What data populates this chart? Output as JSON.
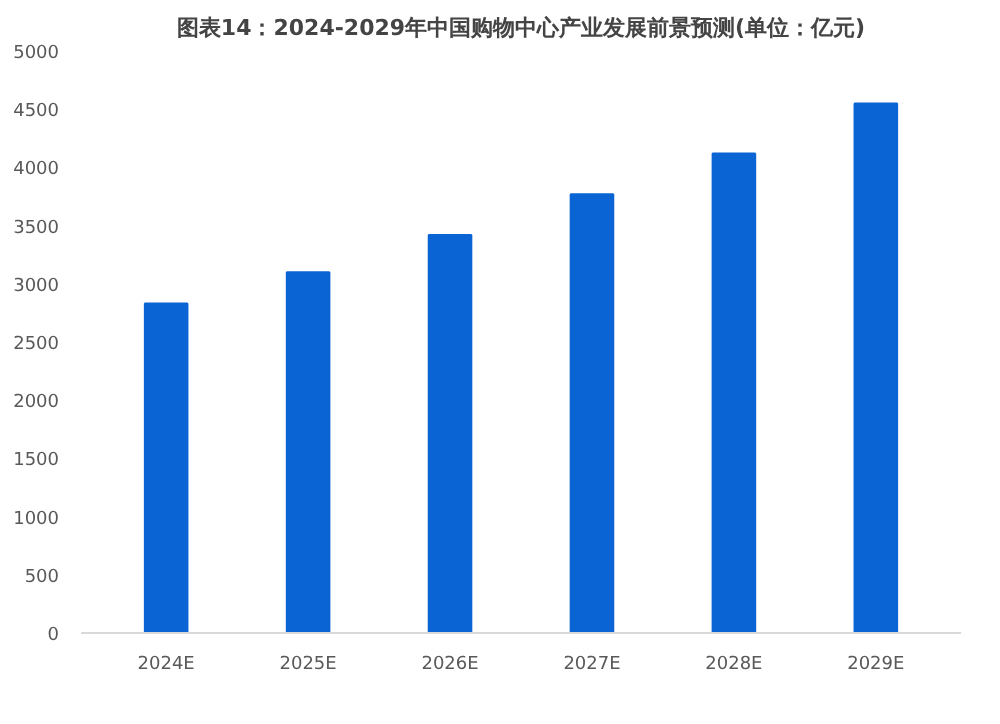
{
  "chart_data": {
    "type": "bar",
    "title": "图表14：2024-2029年中国购物中心产业发展前景预测(单位：亿元)",
    "categories": [
      "2024E",
      "2025E",
      "2026E",
      "2027E",
      "2028E",
      "2029E"
    ],
    "values": [
      2830,
      3100,
      3420,
      3770,
      4120,
      4550
    ],
    "color": "#0b64d4",
    "ylim": [
      0,
      5000
    ],
    "yticks": [
      0,
      500,
      1000,
      1500,
      2000,
      2500,
      3000,
      3500,
      4000,
      4500,
      5000
    ],
    "grid": false
  }
}
